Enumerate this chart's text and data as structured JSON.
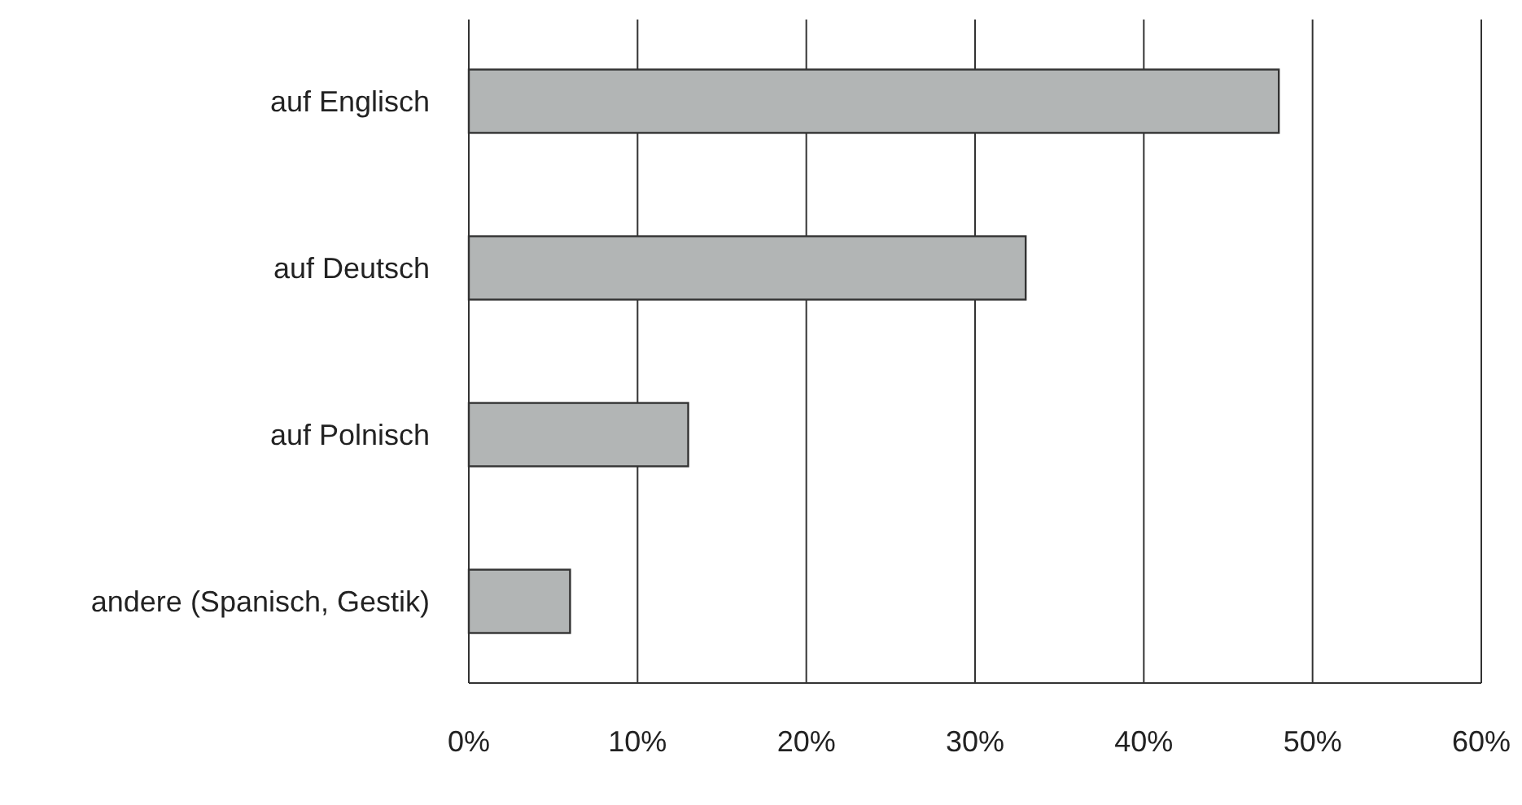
{
  "chart_data": {
    "type": "bar",
    "orientation": "horizontal",
    "categories": [
      "auf Englisch",
      "auf Deutsch",
      "auf Polnisch",
      "andere (Spanisch, Gestik)"
    ],
    "values": [
      48,
      33,
      13,
      6
    ],
    "color": "#b2b5b5",
    "xlim": [
      0,
      60
    ],
    "xticks": [
      {
        "value": 0,
        "label": "0%"
      },
      {
        "value": 10,
        "label": "10%"
      },
      {
        "value": 20,
        "label": "20%"
      },
      {
        "value": 30,
        "label": "30%"
      },
      {
        "value": 40,
        "label": "40%"
      },
      {
        "value": 50,
        "label": "50%"
      },
      {
        "value": 60,
        "label": "60%"
      }
    ],
    "grid": "x"
  }
}
